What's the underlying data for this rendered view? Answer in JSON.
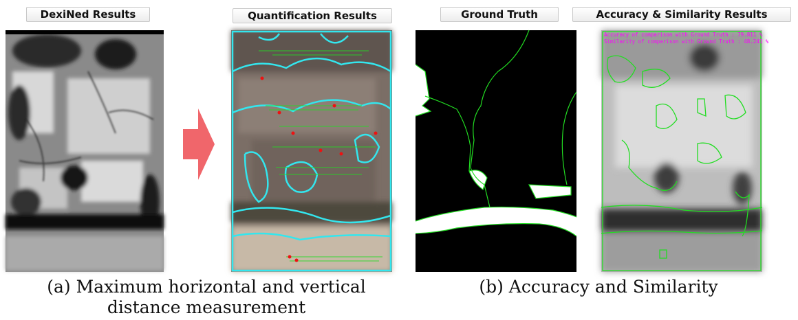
{
  "panels": {
    "dexined": {
      "title": "DexiNed Results"
    },
    "quantification": {
      "title": "Quantification Results"
    },
    "ground_truth": {
      "title": "Ground Truth"
    },
    "accuracy": {
      "title": "Accuracy & Similarity Results",
      "accuracy_text": "Accuracy of comparison with Ground Truth : 79.811 %",
      "similarity_text": "Similarity of comparison with Ground Truth : 48.241 %"
    }
  },
  "captions": {
    "a_line1": "(a) Maximum horizontal and vertical",
    "a_line2": "distance measurement",
    "b": "(b) Accuracy and Similarity"
  },
  "colors": {
    "arrow": "#f0666b",
    "contour_cyan": "#33e6ee",
    "contour_green": "#22dd22",
    "overlay_magenta": "#ff00ff"
  }
}
